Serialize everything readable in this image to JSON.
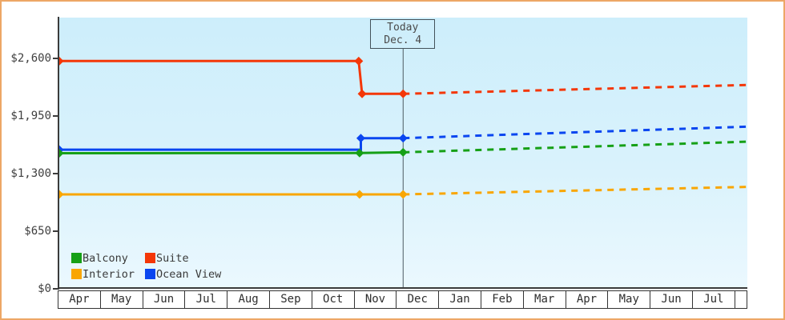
{
  "chart_data": {
    "type": "line",
    "title": "",
    "x_unit": "months since April 1 (0 = Apr, 8 = Dec of same year, 12 = Apr next year)",
    "x_max": 16.27,
    "categories": [
      "Apr",
      "May",
      "Jun",
      "Jul",
      "Aug",
      "Sep",
      "Oct",
      "Nov",
      "Dec",
      "Jan",
      "Feb",
      "Mar",
      "Apr",
      "May",
      "Jun",
      "Jul"
    ],
    "ylim": [
      0,
      2600
    ],
    "ylabel": "",
    "xlabel": "",
    "grid": false,
    "y_ticks": [
      {
        "label": "$2,600",
        "value": 2600
      },
      {
        "label": "$1,950",
        "value": 1950
      },
      {
        "label": "$1,300",
        "value": 1300
      },
      {
        "label": "$650",
        "value": 650
      },
      {
        "label": "$0",
        "value": 0
      }
    ],
    "today": {
      "x": 8.13,
      "label_line1": "Today",
      "label_line2": "Dec. 4"
    },
    "projection_style": "dashed lines after today are projected prices",
    "series": [
      {
        "name": "Ocean View",
        "color": "#0a46f0",
        "solid": [
          [
            0,
            1570
          ],
          [
            7.13,
            1570
          ],
          [
            7.13,
            1700
          ],
          [
            8.13,
            1700
          ]
        ],
        "dashed": [
          [
            8.13,
            1700
          ],
          [
            16.27,
            1830
          ]
        ],
        "markers": [
          [
            0,
            1570
          ],
          [
            7.13,
            1700
          ],
          [
            8.13,
            1700
          ]
        ]
      },
      {
        "name": "Balcony",
        "color": "#16a016",
        "solid": [
          [
            0,
            1530
          ],
          [
            7.1,
            1532
          ],
          [
            8.13,
            1540
          ]
        ],
        "dashed": [
          [
            8.13,
            1540
          ],
          [
            16.27,
            1660
          ]
        ],
        "markers": [
          [
            0,
            1530
          ],
          [
            7.1,
            1532
          ],
          [
            8.13,
            1540
          ]
        ]
      },
      {
        "name": "Interior",
        "color": "#f9a602",
        "solid": [
          [
            0,
            1065
          ],
          [
            7.1,
            1065
          ],
          [
            8.13,
            1065
          ]
        ],
        "dashed": [
          [
            8.13,
            1065
          ],
          [
            16.27,
            1150
          ]
        ],
        "markers": [
          [
            0,
            1065
          ],
          [
            7.1,
            1065
          ],
          [
            8.13,
            1065
          ]
        ]
      },
      {
        "name": "Suite",
        "color": "#f43708",
        "solid": [
          [
            0,
            2570
          ],
          [
            7.08,
            2570
          ],
          [
            7.16,
            2200
          ],
          [
            8.13,
            2200
          ]
        ],
        "dashed": [
          [
            8.13,
            2200
          ],
          [
            16.27,
            2300
          ]
        ],
        "markers": [
          [
            0,
            2570
          ],
          [
            7.08,
            2570
          ],
          [
            7.16,
            2200
          ],
          [
            8.13,
            2200
          ]
        ]
      }
    ],
    "legend_order": [
      "Balcony",
      "Suite",
      "Interior",
      "Ocean View"
    ],
    "legend_position": "bottom-left inside plot"
  },
  "colors": {
    "frame_border": "#eda766",
    "axis": "#3b3b3b",
    "plot_bg_top": "#cdeefb",
    "plot_bg_bottom": "#ebf8fe",
    "today_line": "#4c5a62"
  }
}
